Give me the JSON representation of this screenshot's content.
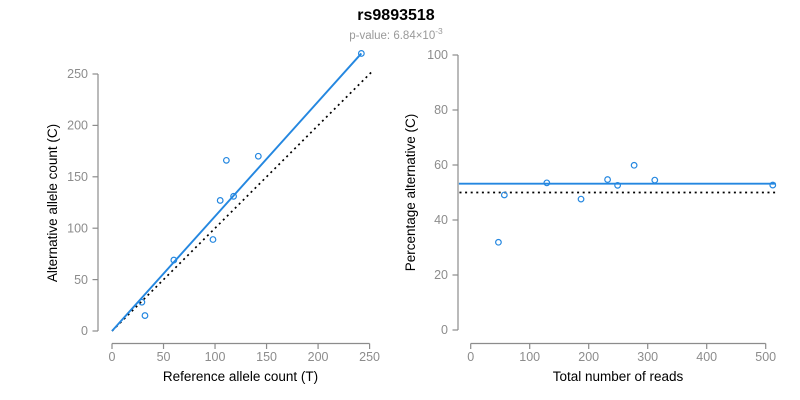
{
  "header": {
    "title": "rs9893518",
    "subtitle_prefix": "p-value: 6.84×10",
    "subtitle_exponent": "-3"
  },
  "colors": {
    "line_blue": "#2487E0",
    "axis_gray": "#8C8C8C",
    "tick_label_gray": "#8C8C8C",
    "axis_title_black": "#000000",
    "dotted_black": "#000000",
    "subtitle_gray": "#999999",
    "background": "#FFFFFF"
  },
  "chart_data": [
    {
      "id": "allele-count-scatter",
      "type": "scatter",
      "xlabel": "Reference allele count (T)",
      "ylabel": "Alternative allele count (C)",
      "xticks": [
        0,
        50,
        100,
        150,
        200,
        250
      ],
      "yticks": [
        0,
        50,
        100,
        150,
        200,
        250
      ],
      "xlim": [
        0,
        252
      ],
      "ylim": [
        0,
        272
      ],
      "grid": false,
      "legend": false,
      "points": [
        [
          32,
          15
        ],
        [
          29,
          28
        ],
        [
          60,
          69
        ],
        [
          98,
          89
        ],
        [
          105,
          127
        ],
        [
          111,
          166
        ],
        [
          118,
          131
        ],
        [
          142,
          170
        ],
        [
          242,
          270
        ]
      ],
      "lines": [
        {
          "name": "identity-line",
          "style": "dotted",
          "color_key": "dotted_black",
          "from": [
            0,
            0
          ],
          "to": [
            252,
            252
          ]
        },
        {
          "name": "fit-line",
          "style": "solid",
          "color_key": "line_blue",
          "from": [
            0,
            0
          ],
          "to": [
            242,
            270
          ]
        }
      ]
    },
    {
      "id": "percentage-vs-reads-scatter",
      "type": "scatter",
      "xlabel": "Total number of reads",
      "ylabel": "Percentage alternative (C)",
      "xticks": [
        0,
        100,
        200,
        300,
        400,
        500
      ],
      "yticks": [
        0,
        20,
        40,
        60,
        80,
        100
      ],
      "xlim": [
        0,
        517
      ],
      "ylim": [
        0,
        100
      ],
      "grid": false,
      "legend": false,
      "points": [
        [
          47,
          31.9
        ],
        [
          57,
          49.1
        ],
        [
          129,
          53.5
        ],
        [
          187,
          47.6
        ],
        [
          232,
          54.7
        ],
        [
          249,
          52.6
        ],
        [
          277,
          59.9
        ],
        [
          312,
          54.5
        ],
        [
          512,
          52.7
        ]
      ],
      "lines": [
        {
          "name": "null-50-percent-line",
          "style": "dotted",
          "color_key": "dotted_black",
          "from": [
            -19,
            50
          ],
          "to": [
            516,
            50
          ]
        },
        {
          "name": "mean-percentage-line",
          "style": "solid",
          "color_key": "line_blue",
          "from": [
            -20,
            53.2
          ],
          "to": [
            517,
            53.2
          ]
        }
      ]
    }
  ]
}
